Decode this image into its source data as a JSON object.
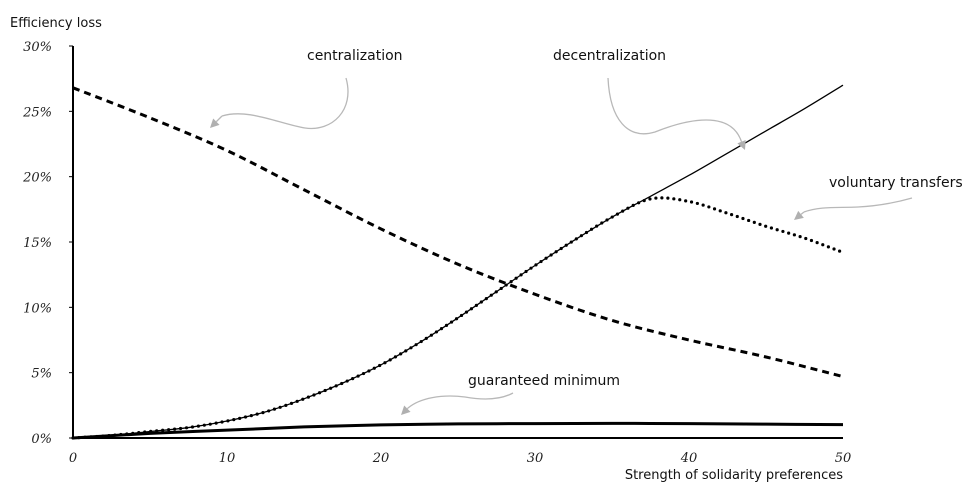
{
  "chart_data": {
    "type": "line",
    "title": "",
    "xlabel": "Strength of solidarity preferences",
    "ylabel": "Efficiency loss",
    "xlim": [
      0,
      50
    ],
    "ylim": [
      0,
      30
    ],
    "x_ticks": [
      0,
      10,
      20,
      30,
      40,
      50
    ],
    "y_ticks": [
      0,
      5,
      10,
      15,
      20,
      25,
      30
    ],
    "x_tick_labels": [
      "0",
      "10",
      "20",
      "30",
      "40",
      "50"
    ],
    "y_tick_labels": [
      "0%",
      "5%",
      "10%",
      "15%",
      "20%",
      "25%",
      "30%"
    ],
    "grid": false,
    "legend": "none",
    "series": [
      {
        "name": "centralization",
        "style": "dashed",
        "x": [
          0,
          5,
          10,
          15,
          20,
          25,
          30,
          35,
          40,
          45,
          50
        ],
        "y": [
          26.8,
          24.5,
          22.0,
          19.0,
          16.0,
          13.3,
          11.0,
          9.0,
          7.5,
          6.2,
          4.7
        ]
      },
      {
        "name": "decentralization",
        "style": "solid",
        "x": [
          0,
          2.5,
          5,
          7.5,
          10,
          12.5,
          15,
          17.5,
          20,
          22.5,
          25,
          27.5,
          30,
          32.5,
          35,
          37.5,
          40,
          42.5,
          45,
          47.5,
          50
        ],
        "y": [
          0,
          0.2,
          0.5,
          0.8,
          1.3,
          2.0,
          3.0,
          4.2,
          5.6,
          7.3,
          9.2,
          11.2,
          13.2,
          15.1,
          16.9,
          18.5,
          20.1,
          21.8,
          23.5,
          25.2,
          27.0
        ]
      },
      {
        "name": "voluntary transfers",
        "style": "dotted",
        "x": [
          0,
          2.5,
          5,
          7.5,
          10,
          12.5,
          15,
          17.5,
          20,
          22.5,
          25,
          27.5,
          30,
          32.5,
          35,
          37.5,
          40,
          42.5,
          45,
          47.5,
          50
        ],
        "y": [
          0,
          0.2,
          0.5,
          0.8,
          1.3,
          2.0,
          3.0,
          4.2,
          5.6,
          7.3,
          9.2,
          11.2,
          13.2,
          15.1,
          16.9,
          18.3,
          18.1,
          17.2,
          16.2,
          15.3,
          14.2
        ]
      },
      {
        "name": "guaranteed minimum",
        "style": "thick",
        "x": [
          0,
          5,
          10,
          15,
          20,
          25,
          30,
          35,
          40,
          45,
          50
        ],
        "y": [
          0,
          0.35,
          0.6,
          0.85,
          1.0,
          1.08,
          1.1,
          1.12,
          1.1,
          1.06,
          1.02
        ]
      }
    ],
    "annotations": [
      {
        "text": "centralization",
        "series": "centralization"
      },
      {
        "text": "decentralization",
        "series": "decentralization"
      },
      {
        "text": "voluntary transfers",
        "series": "voluntary transfers"
      },
      {
        "text": "guaranteed minimum",
        "series": "guaranteed minimum"
      }
    ]
  }
}
